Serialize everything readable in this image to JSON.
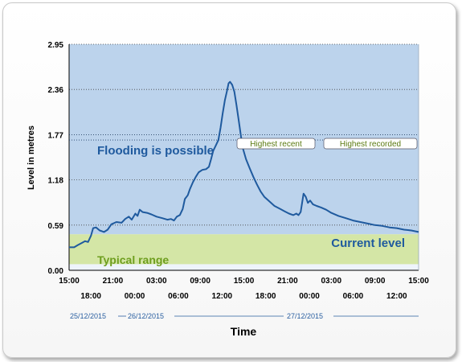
{
  "chart_data": {
    "type": "line",
    "xlabel": "Time",
    "ylabel": "Level in metres",
    "ylim": [
      0,
      2.95
    ],
    "y_ticks": [
      "0.00",
      "0.59",
      "1.18",
      "1.77",
      "2.36",
      "2.95"
    ],
    "x_range_hours": [
      0,
      48
    ],
    "x_ticks_top": [
      {
        "hour": 0,
        "label": "15:00"
      },
      {
        "hour": 6,
        "label": "21:00"
      },
      {
        "hour": 12,
        "label": "03:00"
      },
      {
        "hour": 18,
        "label": "09:00"
      },
      {
        "hour": 24,
        "label": "15:00"
      },
      {
        "hour": 30,
        "label": "21:00"
      },
      {
        "hour": 36,
        "label": "03:00"
      },
      {
        "hour": 42,
        "label": "09:00"
      },
      {
        "hour": 48,
        "label": "15:00"
      }
    ],
    "x_ticks_bottom": [
      {
        "hour": 3,
        "label": "18:00"
      },
      {
        "hour": 9,
        "label": "00:00"
      },
      {
        "hour": 15,
        "label": "06:00"
      },
      {
        "hour": 21,
        "label": "12:00"
      },
      {
        "hour": 27,
        "label": "18:00"
      },
      {
        "hour": 33,
        "label": "00:00"
      },
      {
        "hour": 39,
        "label": "06:00"
      },
      {
        "hour": 45,
        "label": "12:00"
      }
    ],
    "dates": [
      "25/12/2015",
      "26/12/2015",
      "27/12/2015"
    ],
    "bands": [
      {
        "name": "Typical range",
        "from": 0.08,
        "to": 0.47,
        "color": "#d4e6a6"
      },
      {
        "name": "Flooding is possible",
        "from": 0.47,
        "to": 2.95,
        "color": "#bcd3ec"
      }
    ],
    "reference_lines": [
      {
        "name": "Highest recent",
        "value": 1.7
      },
      {
        "name": "Highest recorded",
        "value": 1.77
      }
    ],
    "current_level_label": "Current level",
    "series": [
      {
        "color": "#1f5a9e",
        "points": [
          [
            0,
            0.3
          ],
          [
            0.7,
            0.3
          ],
          [
            1.2,
            0.33
          ],
          [
            1.8,
            0.36
          ],
          [
            2.2,
            0.38
          ],
          [
            2.6,
            0.37
          ],
          [
            3.0,
            0.45
          ],
          [
            3.3,
            0.55
          ],
          [
            3.7,
            0.56
          ],
          [
            4.2,
            0.52
          ],
          [
            4.8,
            0.5
          ],
          [
            5.3,
            0.53
          ],
          [
            5.8,
            0.6
          ],
          [
            6.5,
            0.63
          ],
          [
            7.2,
            0.62
          ],
          [
            7.7,
            0.67
          ],
          [
            8.2,
            0.7
          ],
          [
            8.6,
            0.66
          ],
          [
            9.1,
            0.74
          ],
          [
            9.4,
            0.71
          ],
          [
            9.7,
            0.79
          ],
          [
            10.1,
            0.76
          ],
          [
            10.7,
            0.75
          ],
          [
            11.3,
            0.73
          ],
          [
            12.0,
            0.7
          ],
          [
            12.8,
            0.68
          ],
          [
            13.5,
            0.66
          ],
          [
            14.0,
            0.67
          ],
          [
            14.4,
            0.65
          ],
          [
            14.8,
            0.7
          ],
          [
            15.2,
            0.72
          ],
          [
            15.6,
            0.8
          ],
          [
            15.9,
            0.93
          ],
          [
            16.3,
            0.98
          ],
          [
            16.6,
            1.06
          ],
          [
            17.0,
            1.15
          ],
          [
            17.4,
            1.22
          ],
          [
            17.8,
            1.28
          ],
          [
            18.3,
            1.31
          ],
          [
            18.8,
            1.32
          ],
          [
            19.2,
            1.35
          ],
          [
            19.5,
            1.45
          ],
          [
            19.8,
            1.56
          ],
          [
            20.1,
            1.62
          ],
          [
            20.5,
            1.7
          ],
          [
            20.8,
            1.86
          ],
          [
            21.1,
            2.05
          ],
          [
            21.4,
            2.22
          ],
          [
            21.7,
            2.35
          ],
          [
            21.9,
            2.44
          ],
          [
            22.1,
            2.46
          ],
          [
            22.4,
            2.42
          ],
          [
            22.7,
            2.33
          ],
          [
            23.0,
            2.15
          ],
          [
            23.3,
            1.95
          ],
          [
            23.6,
            1.75
          ],
          [
            23.9,
            1.58
          ],
          [
            24.3,
            1.45
          ],
          [
            24.8,
            1.33
          ],
          [
            25.3,
            1.22
          ],
          [
            25.8,
            1.12
          ],
          [
            26.3,
            1.03
          ],
          [
            26.8,
            0.96
          ],
          [
            27.5,
            0.9
          ],
          [
            28.2,
            0.84
          ],
          [
            29.0,
            0.8
          ],
          [
            29.6,
            0.77
          ],
          [
            30.2,
            0.74
          ],
          [
            30.8,
            0.72
          ],
          [
            31.2,
            0.74
          ],
          [
            31.5,
            0.72
          ],
          [
            31.8,
            0.76
          ],
          [
            32.0,
            0.88
          ],
          [
            32.2,
            1.0
          ],
          [
            32.5,
            0.96
          ],
          [
            32.8,
            0.88
          ],
          [
            33.1,
            0.91
          ],
          [
            33.5,
            0.86
          ],
          [
            34.0,
            0.84
          ],
          [
            34.6,
            0.82
          ],
          [
            35.3,
            0.79
          ],
          [
            36.0,
            0.75
          ],
          [
            37.0,
            0.71
          ],
          [
            38.0,
            0.68
          ],
          [
            39.0,
            0.65
          ],
          [
            40.0,
            0.63
          ],
          [
            41.0,
            0.61
          ],
          [
            42.0,
            0.59
          ],
          [
            43.0,
            0.58
          ],
          [
            44.0,
            0.56
          ],
          [
            45.0,
            0.55
          ],
          [
            46.0,
            0.53
          ],
          [
            47.0,
            0.52
          ],
          [
            48.0,
            0.5
          ]
        ]
      }
    ]
  }
}
